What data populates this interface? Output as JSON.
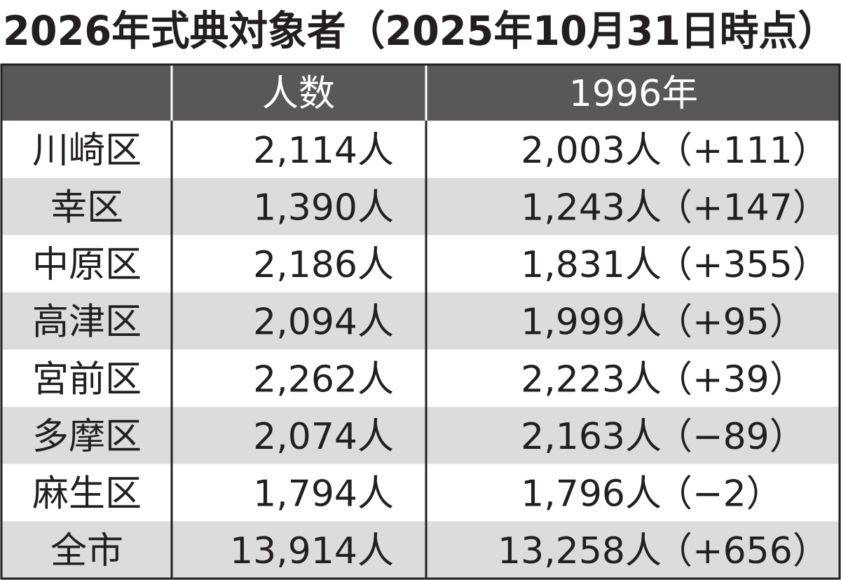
{
  "title": "2026年式典対象者（2025年10月31日時点）",
  "table": {
    "header": [
      "人数",
      "1996年"
    ],
    "rows": [
      [
        "川崎区",
        "2,114人",
        "2,003人",
        "（+111）"
      ],
      [
        "幸区",
        "1,390人",
        "1,243人",
        "（+147）"
      ],
      [
        "中原区",
        "2,186人",
        "1,831人",
        "（+355）"
      ],
      [
        "高津区",
        "2,094人",
        "1,999人",
        "（+95）"
      ],
      [
        "宮前区",
        "2,262人",
        "2,223人",
        "（+39）"
      ],
      [
        "多摩区",
        "2,074人",
        "2,163人",
        "（−89）"
      ],
      [
        "麻生区",
        "1,794人",
        "1,796人",
        "（−2）"
      ],
      [
        "全市",
        "13,914人",
        "13,258人",
        "（+656）"
      ]
    ]
  }
}
